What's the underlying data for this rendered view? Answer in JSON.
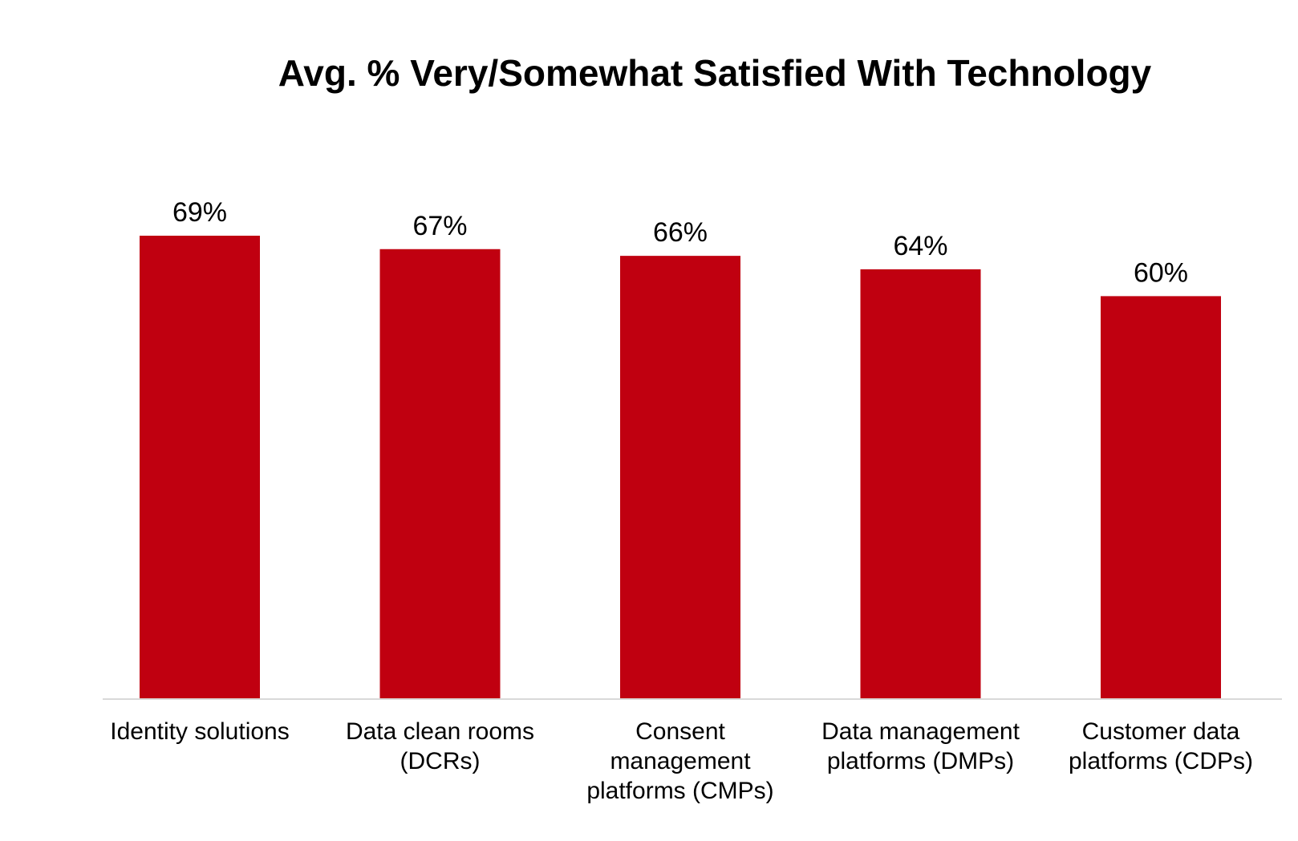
{
  "chart_data": {
    "type": "bar",
    "title": "Avg. % Very/Somewhat Satisfied With Technology",
    "xlabel": "",
    "ylabel": "",
    "ylim": [
      0,
      69
    ],
    "grid": false,
    "legend": "none",
    "bar_color": "#C00010",
    "axis_color": "#D9D9D9",
    "categories": [
      [
        "Identity solutions"
      ],
      [
        "Data clean rooms",
        "(DCRs)"
      ],
      [
        "Consent",
        "management",
        "platforms (CMPs)"
      ],
      [
        "Data management",
        "platforms (DMPs)"
      ],
      [
        "Customer data",
        "platforms (CDPs)"
      ]
    ],
    "values": [
      69,
      67,
      66,
      64,
      60
    ],
    "value_labels": [
      "69%",
      "67%",
      "66%",
      "64%",
      "60%"
    ]
  }
}
